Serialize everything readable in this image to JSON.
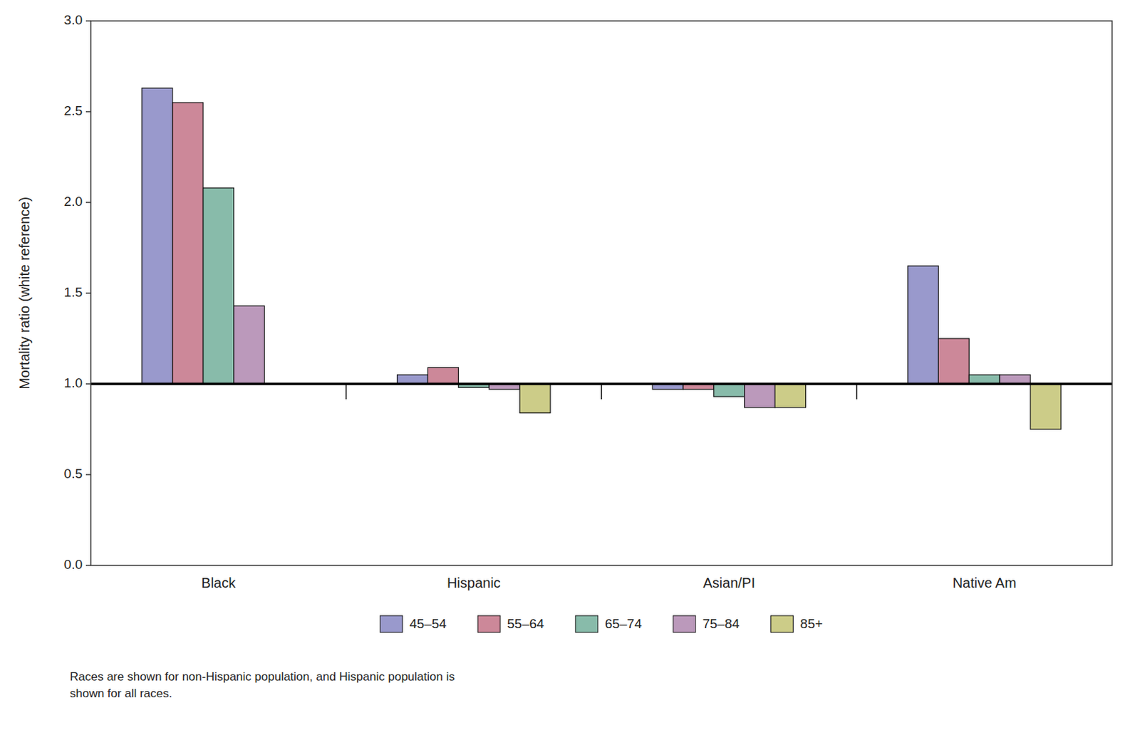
{
  "chart_data": {
    "type": "bar",
    "categories": [
      "Black",
      "Hispanic",
      "Asian/PI",
      "Native Am"
    ],
    "series": [
      {
        "name": "45–54",
        "color": "#9999cc",
        "values": [
          2.63,
          1.05,
          0.97,
          1.65
        ]
      },
      {
        "name": "55–64",
        "color": "#cc8899",
        "values": [
          2.55,
          1.09,
          0.97,
          1.25
        ]
      },
      {
        "name": "65–74",
        "color": "#88bbaa",
        "values": [
          2.08,
          0.98,
          0.93,
          1.05
        ]
      },
      {
        "name": "75–84",
        "color": "#bb99bb",
        "values": [
          1.43,
          0.97,
          0.87,
          1.05
        ]
      },
      {
        "name": "85+",
        "color": "#cccc88",
        "values": [
          1.0,
          0.84,
          0.87,
          0.75
        ]
      }
    ],
    "ylabel": "Mortality ratio (white reference)",
    "ylim": [
      0.0,
      3.0
    ],
    "yticks": [
      {
        "value": 0.0,
        "label": "0.0"
      },
      0.5,
      {
        "value": 1.0,
        "label": "1.0"
      },
      1.5,
      {
        "value": 2.0,
        "label": "2.0"
      },
      2.5,
      {
        "value": 3.0,
        "label": "3.0"
      }
    ],
    "baseline": 1.0,
    "footnote": "Races are shown for non-Hispanic population, and Hispanic population is\nshown for all races.",
    "legend": "bottom",
    "grid": false
  }
}
